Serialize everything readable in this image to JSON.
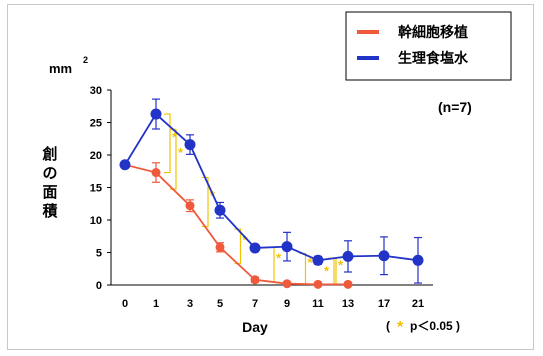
{
  "chart_data": {
    "type": "line",
    "x": [
      "0",
      "1",
      "3",
      "5",
      "7",
      "9",
      "11",
      "13",
      "17",
      "21"
    ],
    "y_unit": "mm",
    "y_unit_sup": "2",
    "ylabel": "創の面積",
    "xlabel": "Day",
    "ylim": [
      0,
      30
    ],
    "yticks": [
      0,
      5,
      10,
      15,
      20,
      25,
      30
    ],
    "grid": false,
    "legend_position": "top-right",
    "n_label": "(n=7)",
    "footnote": {
      "open": "(",
      "star": "*",
      "text": "p＜0.05 )"
    },
    "series": [
      {
        "name": "幹細胞移植",
        "color": "#f05a3c",
        "values": [
          18.5,
          17.3,
          12.2,
          5.8,
          0.8,
          0.2,
          0.1,
          0.1,
          null,
          null
        ],
        "errors": [
          0,
          1.5,
          0.9,
          0.7,
          0.4,
          0.2,
          0.1,
          0.1,
          null,
          null
        ]
      },
      {
        "name": "生理食塩水",
        "color": "#2233c8",
        "values": [
          18.5,
          26.3,
          21.6,
          11.5,
          5.7,
          5.9,
          3.8,
          4.4,
          4.5,
          3.8
        ],
        "errors": [
          0,
          2.3,
          1.5,
          1.2,
          0.5,
          2.2,
          0.6,
          2.4,
          2.9,
          3.5
        ]
      }
    ],
    "significance_marks": [
      "*",
      "*",
      "*",
      "*",
      "*",
      "*",
      "*",
      "*"
    ]
  }
}
